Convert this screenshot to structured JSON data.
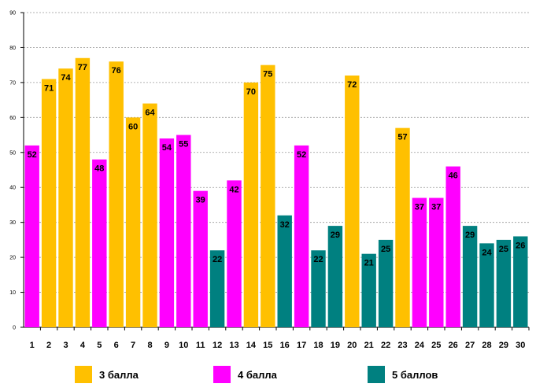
{
  "chart_data": {
    "type": "bar",
    "title": "",
    "xlabel": "",
    "ylabel": "",
    "ylim": [
      0,
      90
    ],
    "yticks": [
      0,
      10,
      20,
      30,
      40,
      50,
      60,
      70,
      80,
      90
    ],
    "grid": true,
    "legend_position": "bottom",
    "categories": [
      "1",
      "2",
      "3",
      "4",
      "5",
      "6",
      "7",
      "8",
      "9",
      "10",
      "11",
      "12",
      "13",
      "14",
      "15",
      "16",
      "17",
      "18",
      "19",
      "20",
      "21",
      "22",
      "23",
      "24",
      "25",
      "26",
      "27",
      "28",
      "29",
      "30"
    ],
    "values": [
      52,
      71,
      74,
      77,
      48,
      76,
      60,
      64,
      54,
      55,
      39,
      22,
      42,
      70,
      75,
      32,
      52,
      22,
      29,
      72,
      21,
      25,
      57,
      37,
      37,
      46,
      29,
      24,
      25,
      26
    ],
    "groups": [
      "4",
      "3",
      "3",
      "3",
      "4",
      "3",
      "3",
      "3",
      "4",
      "4",
      "4",
      "5",
      "4",
      "3",
      "3",
      "5",
      "4",
      "5",
      "5",
      "3",
      "5",
      "5",
      "3",
      "4",
      "4",
      "4",
      "5",
      "5",
      "5",
      "5"
    ],
    "series": [
      {
        "key": "3",
        "name": "3 балла",
        "color": "#FFC000"
      },
      {
        "key": "4",
        "name": "4 балла",
        "color": "#FF00FF"
      },
      {
        "key": "5",
        "name": "5 баллов",
        "color": "#008080"
      }
    ]
  }
}
